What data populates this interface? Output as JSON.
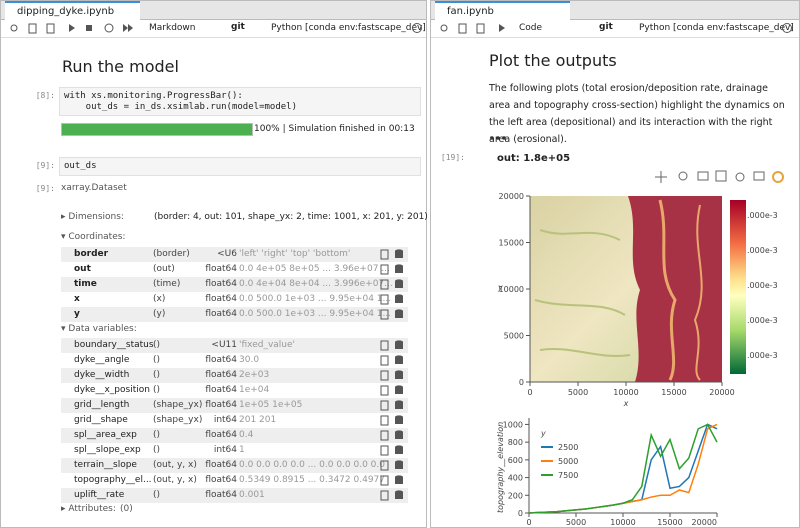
{
  "left": {
    "tab": "dipping_dyke.ipynb",
    "toolbar": {
      "cell_type": "Markdown",
      "git": "git",
      "kernel": "Python [conda env:fastscape_dev]"
    },
    "heading": "Run the model",
    "cell_8": {
      "prompt": "[8]:",
      "lines": [
        "with xs.monitoring.ProgressBar():",
        "    out_ds = in_ds.xsimlab.run(model=model)"
      ]
    },
    "progress": {
      "value": 100,
      "label": "100% | Simulation finished in 00:13"
    },
    "cell_9": {
      "prompt": "[9]:",
      "code": "out_ds"
    },
    "out_9": {
      "prompt": "[9]:",
      "type": "xarray.Dataset"
    },
    "dimensions": {
      "label": "Dimensions:",
      "text": "(border: 4, out: 101, shape_yx: 2, time: 1001, x: 201, y: 201)"
    },
    "coordinates": {
      "label": "Coordinates:",
      "rows": [
        [
          "border",
          "(border)",
          "<U6",
          "'left' 'right' 'top' 'bottom'"
        ],
        [
          "out",
          "(out)",
          "float64",
          "0.0 4e+05 8e+05 ... 3.96e+07 ..."
        ],
        [
          "time",
          "(time)",
          "float64",
          "0.0 4e+04 8e+04 ... 3.996e+07..."
        ],
        [
          "x",
          "(x)",
          "float64",
          "0.0 500.0 1e+03 ... 9.95e+04 1..."
        ],
        [
          "y",
          "(y)",
          "float64",
          "0.0 500.0 1e+03 ... 9.95e+04 1..."
        ]
      ]
    },
    "data_variables": {
      "label": "Data variables:",
      "rows": [
        [
          "boundary__status",
          "()",
          "<U11",
          "'fixed_value'"
        ],
        [
          "dyke__angle",
          "()",
          "float64",
          "30.0"
        ],
        [
          "dyke__width",
          "()",
          "float64",
          "2e+03"
        ],
        [
          "dyke__x_position",
          "()",
          "float64",
          "1e+04"
        ],
        [
          "grid__length",
          "(shape_yx)",
          "float64",
          "1e+05 1e+05"
        ],
        [
          "grid__shape",
          "(shape_yx)",
          "int64",
          "201 201"
        ],
        [
          "spl__area_exp",
          "()",
          "float64",
          "0.4"
        ],
        [
          "spl__slope_exp",
          "()",
          "int64",
          "1"
        ],
        [
          "terrain__slope",
          "(out, y, x)",
          "float64",
          "0.0 0.0 0.0 0.0 ... 0.0 0.0 0.0 0.0"
        ],
        [
          "topography__el...",
          "(out, y, x)",
          "float64",
          "0.5349 0.8915 ... 0.3472 0.4977"
        ],
        [
          "uplift__rate",
          "()",
          "float64",
          "0.001"
        ]
      ]
    },
    "attributes": {
      "label": "Attributes:",
      "count": "(0)"
    }
  },
  "right": {
    "tab": "fan.ipynb",
    "toolbar": {
      "cell_type": "Code",
      "git": "git",
      "kernel": "Python [conda env:fastscape_dev]"
    },
    "heading": "Plot the outputs",
    "paragraph": "The following plots (total erosion/deposition rate, drainage area and topography cross-section) highlight the dynamics on the left area (depositional) and its interaction with the right area (erosional).",
    "cell_19": {
      "prompt": "[19]:",
      "widget": "out: 1.8e+05"
    },
    "heatmap": {
      "xlabel": "x",
      "ylabel": "y",
      "xlim": [
        0,
        20000
      ],
      "ylim": [
        0,
        20000
      ],
      "xticks": [
        0,
        5000,
        10000,
        15000,
        20000
      ],
      "yticks": [
        0,
        5000,
        10000,
        15000,
        20000
      ],
      "colorbar_labels": [
        ".000e-3",
        ".000e-3",
        ".000e-3",
        ".000e-3",
        ".000e-3"
      ]
    },
    "line_chart": {
      "type": "line",
      "ylabel": "topography__elevation",
      "legend_title": "y",
      "x": [
        0,
        1000,
        2000,
        3000,
        4000,
        5000,
        6000,
        7000,
        8000,
        9000,
        10000,
        11000,
        12000,
        13000,
        14000,
        15000,
        16000,
        17000,
        18000,
        19000,
        20000
      ],
      "series": [
        {
          "name": "2500",
          "color": "#1f77b4",
          "values": [
            0,
            5,
            10,
            15,
            25,
            35,
            45,
            60,
            75,
            90,
            110,
            130,
            150,
            600,
            750,
            280,
            300,
            400,
            700,
            1000,
            950
          ]
        },
        {
          "name": "5000",
          "color": "#ff7f0e",
          "values": [
            0,
            5,
            10,
            15,
            25,
            35,
            45,
            60,
            75,
            90,
            110,
            130,
            150,
            180,
            200,
            200,
            260,
            230,
            550,
            950,
            1000
          ]
        },
        {
          "name": "7500",
          "color": "#2ca02c",
          "values": [
            0,
            5,
            10,
            15,
            25,
            35,
            45,
            60,
            75,
            90,
            110,
            150,
            300,
            880,
            640,
            830,
            500,
            620,
            950,
            1000,
            800
          ]
        }
      ],
      "xlim": [
        0,
        20000
      ],
      "ylim": [
        0,
        1050
      ],
      "xticks": [
        0,
        5000,
        10000,
        15000,
        20000
      ],
      "yticks": [
        0,
        200,
        400,
        600,
        800,
        1000
      ]
    }
  }
}
